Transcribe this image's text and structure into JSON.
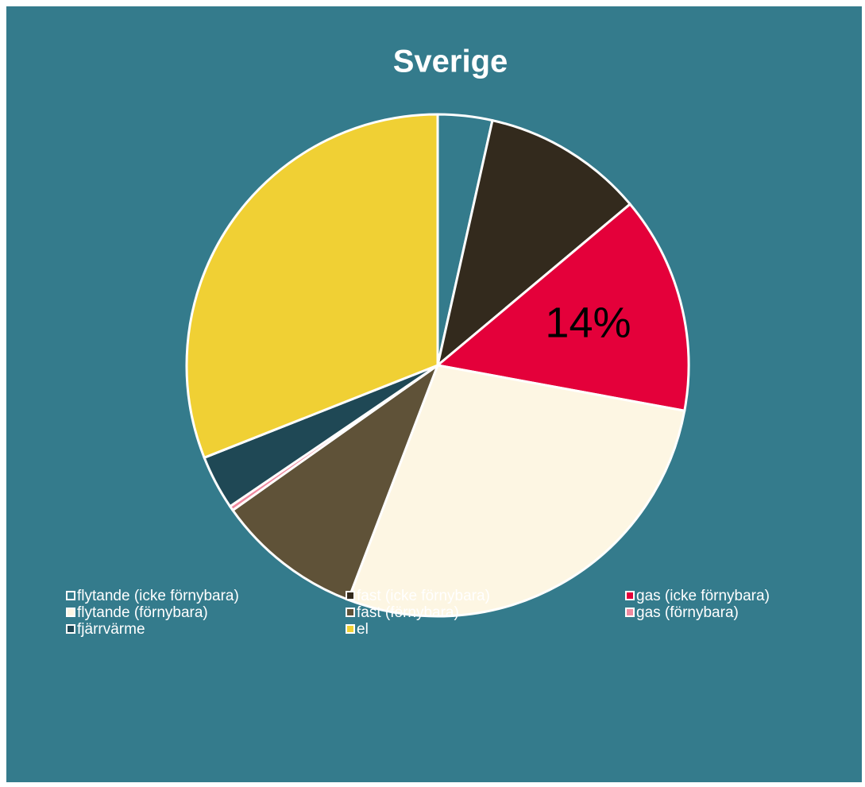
{
  "chart_data": {
    "type": "pie",
    "title": "Sverige",
    "categories": [
      "flytande (icke förnybara)",
      "fast (icke förnybara)",
      "gas (icke förnybara)",
      "flytande (förnybara)",
      "fast (förnybara)",
      "gas (förnybara)",
      "fjärrvärme",
      "el"
    ],
    "values": [
      3.5,
      10.4,
      14,
      27.9,
      9.4,
      0.3,
      3.5,
      31
    ],
    "value_labels": [
      null,
      null,
      "14%",
      null,
      null,
      null,
      null,
      null
    ],
    "colors": [
      "#347b8c",
      "#332a1d",
      "#e4003a",
      "#fdf6e3",
      "#5f5238",
      "#f08aa0",
      "#1f4855",
      "#f0d034"
    ],
    "legend": "bottom"
  }
}
